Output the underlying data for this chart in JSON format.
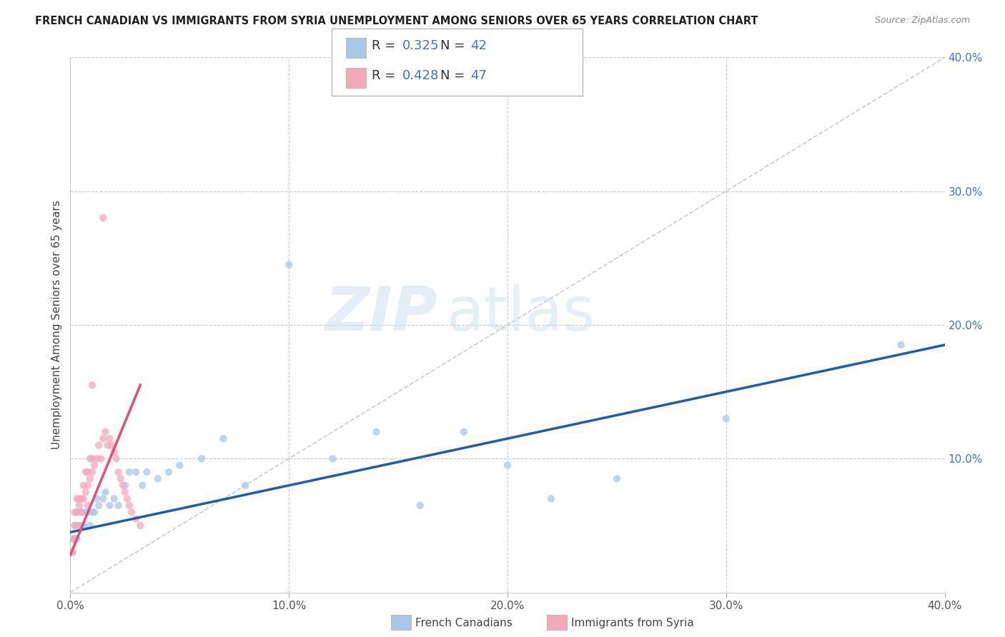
{
  "title": "FRENCH CANADIAN VS IMMIGRANTS FROM SYRIA UNEMPLOYMENT AMONG SENIORS OVER 65 YEARS CORRELATION CHART",
  "source": "Source: ZipAtlas.com",
  "ylabel": "Unemployment Among Seniors over 65 years",
  "xlim": [
    0.0,
    0.4
  ],
  "ylim": [
    0.0,
    0.4
  ],
  "background_color": "#ffffff",
  "grid_color": "#cccccc",
  "watermark_zip": "ZIP",
  "watermark_atlas": "atlas",
  "legend_R_blue": "0.325",
  "legend_N_blue": "42",
  "legend_R_pink": "0.428",
  "legend_N_pink": "47",
  "blue_color": "#a8c8e8",
  "pink_color": "#f4a8bc",
  "blue_line_color": "#1a5fad",
  "pink_line_color": "#e05070",
  "scatter_alpha": 0.75,
  "scatter_size": 55,
  "french_canadians_x": [
    0.001,
    0.002,
    0.002,
    0.003,
    0.003,
    0.004,
    0.005,
    0.005,
    0.006,
    0.007,
    0.008,
    0.009,
    0.01,
    0.011,
    0.012,
    0.013,
    0.015,
    0.016,
    0.018,
    0.02,
    0.022,
    0.025,
    0.027,
    0.03,
    0.033,
    0.035,
    0.04,
    0.045,
    0.05,
    0.06,
    0.07,
    0.08,
    0.1,
    0.12,
    0.14,
    0.16,
    0.18,
    0.2,
    0.22,
    0.25,
    0.3,
    0.38
  ],
  "french_canadians_y": [
    0.03,
    0.04,
    0.05,
    0.04,
    0.06,
    0.05,
    0.05,
    0.06,
    0.05,
    0.06,
    0.06,
    0.05,
    0.06,
    0.06,
    0.07,
    0.065,
    0.07,
    0.075,
    0.065,
    0.07,
    0.065,
    0.08,
    0.09,
    0.09,
    0.08,
    0.09,
    0.085,
    0.09,
    0.095,
    0.1,
    0.115,
    0.08,
    0.245,
    0.1,
    0.12,
    0.065,
    0.12,
    0.095,
    0.07,
    0.085,
    0.13,
    0.185
  ],
  "syria_x": [
    0.0005,
    0.001,
    0.001,
    0.0015,
    0.002,
    0.002,
    0.002,
    0.003,
    0.003,
    0.003,
    0.004,
    0.004,
    0.005,
    0.005,
    0.006,
    0.006,
    0.007,
    0.007,
    0.008,
    0.008,
    0.009,
    0.009,
    0.01,
    0.01,
    0.011,
    0.012,
    0.013,
    0.014,
    0.015,
    0.016,
    0.017,
    0.018,
    0.019,
    0.02,
    0.021,
    0.022,
    0.023,
    0.024,
    0.025,
    0.026,
    0.027,
    0.028,
    0.03,
    0.032,
    0.015,
    0.01,
    0.008
  ],
  "syria_y": [
    0.03,
    0.03,
    0.04,
    0.04,
    0.04,
    0.05,
    0.06,
    0.05,
    0.06,
    0.07,
    0.065,
    0.07,
    0.06,
    0.07,
    0.07,
    0.08,
    0.075,
    0.09,
    0.08,
    0.09,
    0.085,
    0.1,
    0.09,
    0.1,
    0.095,
    0.1,
    0.11,
    0.1,
    0.115,
    0.12,
    0.11,
    0.115,
    0.11,
    0.105,
    0.1,
    0.09,
    0.085,
    0.08,
    0.075,
    0.07,
    0.065,
    0.06,
    0.055,
    0.05,
    0.28,
    0.155,
    0.065
  ],
  "blue_trendline_x": [
    0.0,
    0.4
  ],
  "blue_trendline_y": [
    0.045,
    0.185
  ],
  "pink_trendline_x": [
    0.0,
    0.032
  ],
  "pink_trendline_y": [
    0.028,
    0.155
  ]
}
